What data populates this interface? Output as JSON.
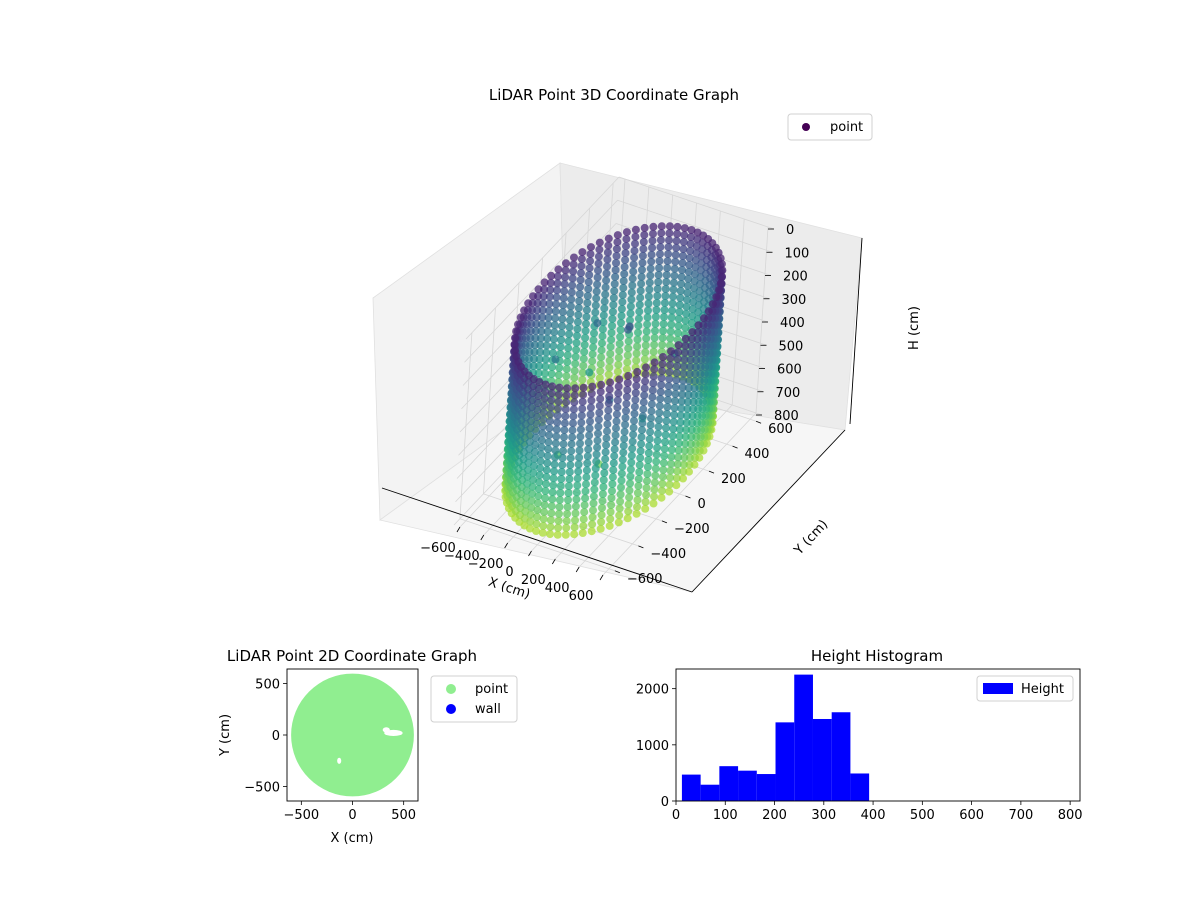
{
  "chart_data": [
    {
      "type": "scatter",
      "projection": "3d",
      "title": "LiDAR Point 3D Coordinate Graph",
      "xlabel": "X (cm)",
      "ylabel": "Y (cm)",
      "zlabel": "H (cm)",
      "xlim": [
        -650,
        650
      ],
      "ylim": [
        -650,
        650
      ],
      "zlim": [
        0,
        800
      ],
      "z_inverted": true,
      "x_ticks": [
        "−600",
        "−400",
        "−200",
        "0",
        "200",
        "400",
        "600"
      ],
      "y_ticks": [
        "−600",
        "−400",
        "−200",
        "0",
        "200",
        "400",
        "600"
      ],
      "z_ticks": [
        "0",
        "100",
        "200",
        "300",
        "400",
        "500",
        "600",
        "700",
        "800"
      ],
      "colormap": "viridis",
      "grid": true,
      "legend": {
        "position": "top-right",
        "entries": [
          {
            "label": "point",
            "color": "#440154"
          }
        ]
      },
      "wall_ring": {
        "radius": 620,
        "h_min": 100,
        "h_max": 750
      },
      "series": [
        {
          "name": "point",
          "points": [
            [
              0,
              100,
              250
            ],
            [
              30,
              80,
              220
            ],
            [
              -300,
              150,
              300
            ],
            [
              -400,
              -100,
              340
            ],
            [
              200,
              -250,
              330
            ],
            [
              350,
              150,
              320
            ],
            [
              -150,
              -300,
              600
            ],
            [
              100,
              -200,
              650
            ],
            [
              -250,
              50,
              450
            ],
            [
              300,
              -50,
              500
            ]
          ]
        }
      ]
    },
    {
      "type": "scatter",
      "title": "LiDAR Point 2D Coordinate Graph",
      "xlabel": "X (cm)",
      "ylabel": "Y (cm)",
      "xlim": [
        -640,
        640
      ],
      "ylim": [
        -640,
        640
      ],
      "x_ticks": [
        -500,
        0,
        500
      ],
      "y_ticks": [
        -500,
        0,
        500
      ],
      "legend": {
        "position": "outside-right",
        "entries": [
          {
            "label": "point",
            "color": "#90ee90"
          },
          {
            "label": "wall",
            "color": "#0000ff"
          }
        ]
      },
      "disk_radius": 600,
      "gaps": [
        {
          "x": 400,
          "y": 20,
          "w": 180,
          "h": 60
        },
        {
          "x": 330,
          "y": 50,
          "w": 70,
          "h": 50
        },
        {
          "x": -130,
          "y": -250,
          "w": 40,
          "h": 60
        }
      ]
    },
    {
      "type": "bar",
      "title": "Height Histogram",
      "xlabel": "",
      "ylabel": "",
      "xlim": [
        0,
        820
      ],
      "ylim": [
        0,
        2350
      ],
      "x_ticks": [
        0,
        100,
        200,
        300,
        400,
        500,
        600,
        700,
        800
      ],
      "y_ticks": [
        0,
        1000,
        2000
      ],
      "legend": {
        "position": "top-right",
        "entries": [
          {
            "label": "Height",
            "color": "#0000ff"
          }
        ]
      },
      "bin_edges": [
        12,
        50,
        88,
        126,
        164,
        202,
        240,
        278,
        316,
        354,
        392,
        430,
        468,
        506,
        544,
        582,
        620,
        658,
        696,
        734,
        772
      ],
      "values": [
        470,
        290,
        620,
        540,
        480,
        1400,
        2250,
        1460,
        1580,
        490,
        0,
        0,
        0,
        0,
        0,
        0,
        0,
        0,
        0,
        0
      ],
      "color": "#0000ff"
    }
  ]
}
